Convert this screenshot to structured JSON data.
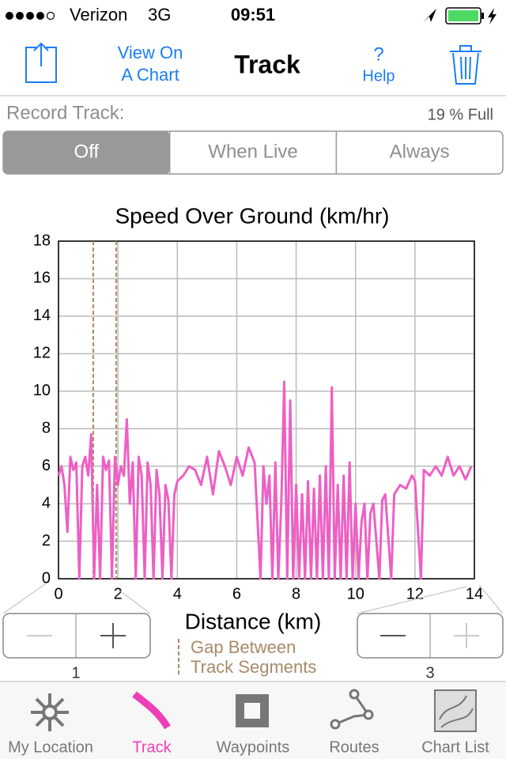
{
  "status_bar": {
    "carrier": "Verizon",
    "network": "3G",
    "time": "09:51"
  },
  "nav": {
    "chart_button": [
      "View On",
      "A Chart"
    ],
    "title": "Track",
    "help_icon": "?",
    "help": "Help"
  },
  "record": {
    "label": "Record Track:",
    "usage": "19 % Full",
    "options": [
      "Off",
      "When Live",
      "Always"
    ],
    "selected": 0
  },
  "zoom": {
    "left_level": "1",
    "right_level": "3"
  },
  "tabs": {
    "items": [
      "My Location",
      "Track",
      "Waypoints",
      "Routes",
      "Chart List"
    ],
    "selected": 1
  },
  "chart_data": {
    "type": "line",
    "title": "Speed Over Ground (km/hr)",
    "x_label": "Distance (km)",
    "xlim": [
      0,
      14
    ],
    "ylim": [
      0,
      18
    ],
    "xticks": [
      0,
      2,
      4,
      6,
      8,
      10,
      12,
      14
    ],
    "yticks": [
      0,
      2,
      4,
      6,
      8,
      10,
      12,
      14,
      16,
      18
    ],
    "grid": true,
    "gap_lines": {
      "name": [
        "Gap Between",
        "Track Segments"
      ],
      "x": [
        1.17,
        1.94
      ],
      "color": "#a88a68"
    },
    "x": [
      0,
      0.1,
      0.2,
      0.3,
      0.4,
      0.5,
      0.6,
      0.7,
      0.8,
      0.9,
      1.0,
      1.1,
      1.2,
      1.3,
      1.4,
      1.5,
      1.6,
      1.7,
      1.8,
      1.9,
      2.0,
      2.1,
      2.2,
      2.3,
      2.4,
      2.5,
      2.6,
      2.7,
      2.8,
      2.9,
      3.0,
      3.1,
      3.2,
      3.3,
      3.4,
      3.5,
      3.6,
      3.7,
      3.8,
      3.9,
      4.0,
      4.2,
      4.4,
      4.6,
      4.8,
      5.0,
      5.2,
      5.4,
      5.6,
      5.8,
      6.0,
      6.2,
      6.4,
      6.6,
      6.8,
      6.9,
      7.0,
      7.1,
      7.2,
      7.3,
      7.4,
      7.5,
      7.6,
      7.7,
      7.8,
      7.9,
      8.0,
      8.1,
      8.2,
      8.3,
      8.4,
      8.5,
      8.6,
      8.7,
      8.8,
      8.9,
      9.0,
      9.1,
      9.2,
      9.3,
      9.4,
      9.5,
      9.6,
      9.7,
      9.8,
      9.9,
      10.0,
      10.1,
      10.2,
      10.3,
      10.4,
      10.5,
      10.6,
      10.8,
      10.9,
      11.0,
      11.2,
      11.3,
      11.5,
      11.7,
      11.9,
      12.0,
      12.2,
      12.3,
      12.5,
      12.7,
      12.9,
      13.1,
      13.3,
      13.5,
      13.7,
      13.9
    ],
    "series": [
      {
        "name": "Speed",
        "color": "#ee5fc4",
        "values": [
          5.5,
          6.0,
          5.0,
          2.5,
          6.5,
          5.8,
          6.2,
          0,
          6.0,
          6.5,
          5.5,
          7.7,
          0,
          5.0,
          0,
          6.5,
          5.8,
          6.3,
          0,
          6.5,
          5.0,
          6.0,
          5.5,
          8.5,
          4.0,
          6.2,
          0,
          6.5,
          5.5,
          0,
          6.2,
          5.0,
          0,
          5.8,
          4.5,
          0,
          5.0,
          4.2,
          0,
          4.5,
          5.2,
          5.5,
          6.0,
          5.8,
          5.0,
          6.5,
          4.5,
          6.8,
          6.0,
          5.0,
          6.5,
          5.5,
          7.0,
          6.2,
          0,
          6.0,
          4.0,
          5.5,
          0,
          6.2,
          0,
          4.0,
          10.5,
          0,
          9.5,
          0,
          5.0,
          0,
          4.5,
          0,
          5.2,
          0,
          4.8,
          0,
          5.5,
          0,
          6.0,
          0,
          10.2,
          0,
          5.0,
          0,
          5.5,
          0,
          6.2,
          0,
          4.0,
          0,
          3.0,
          4.0,
          0,
          3.5,
          4.0,
          0,
          4.2,
          4.5,
          0,
          4.5,
          5.0,
          4.8,
          5.5,
          5.2,
          0,
          5.8,
          5.5,
          6.0,
          5.5,
          6.5,
          5.5,
          6.0,
          5.3,
          6.0
        ]
      }
    ]
  }
}
